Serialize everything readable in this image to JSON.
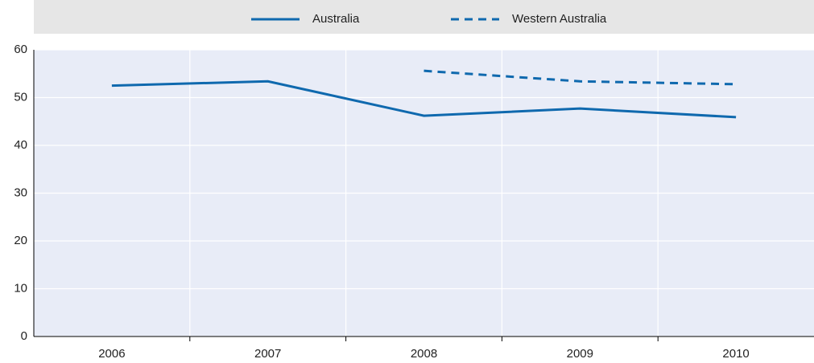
{
  "chart_data": {
    "type": "line",
    "categories": [
      "2006",
      "2007",
      "2008",
      "2009",
      "2010"
    ],
    "series": [
      {
        "name": "Australia",
        "color": "#0f69ae",
        "dash": false,
        "values": [
          52.5,
          53.4,
          46.2,
          47.7,
          45.9
        ]
      },
      {
        "name": "Western Australia",
        "color": "#0f69ae",
        "dash": true,
        "values": [
          null,
          null,
          55.6,
          53.4,
          52.8
        ]
      }
    ],
    "ylim": [
      0,
      60
    ],
    "yticks": [
      0,
      10,
      20,
      30,
      40,
      50,
      60
    ],
    "grid": true,
    "legend": "top"
  }
}
